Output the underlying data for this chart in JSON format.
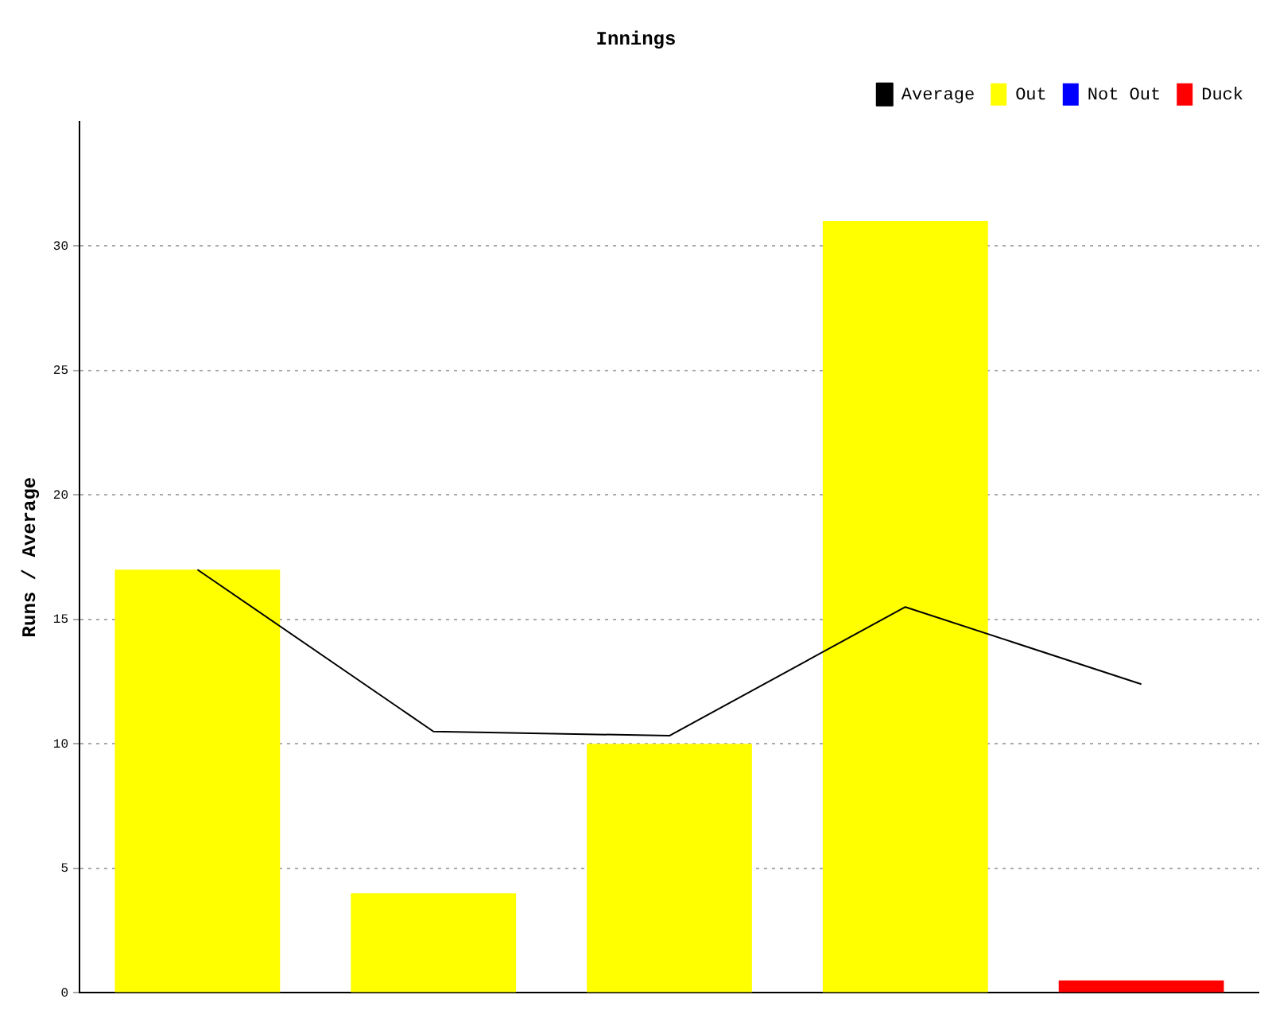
{
  "chart_data": {
    "type": "bar",
    "title": "Innings",
    "ylabel": "Runs / Average",
    "categories": [
      null,
      null,
      null,
      null,
      null
    ],
    "series": [
      {
        "name": "Average",
        "type": "line",
        "color": "#000000",
        "values": [
          17,
          10.5,
          10.33,
          15.5,
          12.4
        ]
      },
      {
        "name": "Out",
        "color": "#ffff00",
        "values": [
          17,
          4,
          10,
          31,
          null
        ]
      },
      {
        "name": "Not Out",
        "color": "#0000ff",
        "values": [
          null,
          null,
          null,
          null,
          null
        ]
      },
      {
        "name": "Duck",
        "color": "#ff0000",
        "values": [
          null,
          null,
          null,
          null,
          0.5
        ]
      }
    ],
    "ylim": [
      0,
      35
    ],
    "yticks": [
      0,
      5,
      10,
      15,
      20,
      25,
      30
    ],
    "grid": "y",
    "legend": "top right",
    "tick_labels": "y",
    "marker": "none"
  }
}
